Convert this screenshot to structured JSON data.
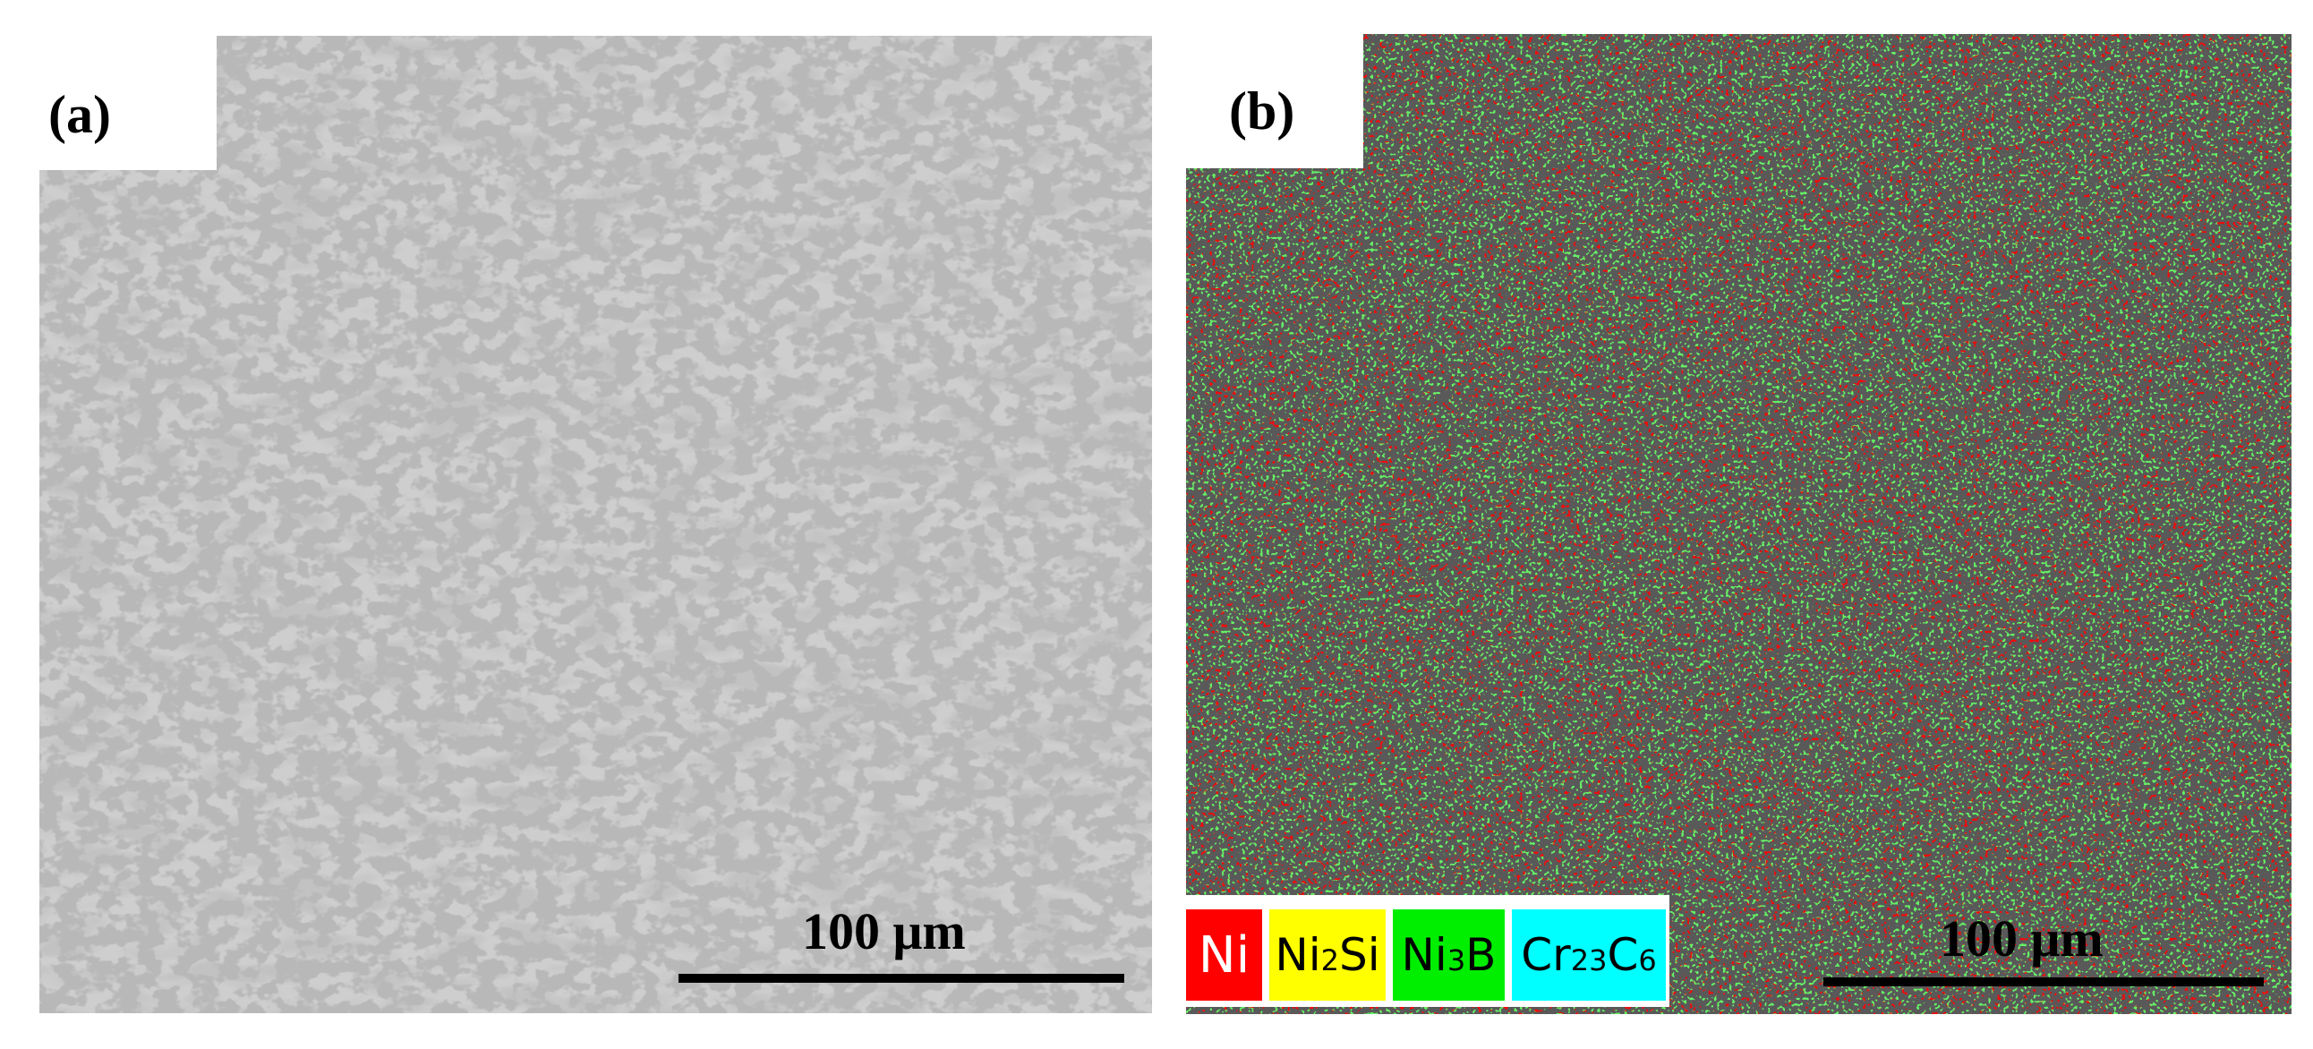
{
  "panels": {
    "a": {
      "label": "(a)",
      "scale_label": "100 μm"
    },
    "b": {
      "label": "(b)",
      "scale_label": "100 μm"
    }
  },
  "legend": [
    {
      "key": "ni",
      "base": "Ni",
      "sub1": "",
      "mid": "",
      "sub2": "",
      "color": "#ff0000",
      "text_color": "#ffffff"
    },
    {
      "key": "ni2si",
      "base": "Ni",
      "sub1": "2",
      "mid": "Si",
      "sub2": "",
      "color": "#ffff00",
      "text_color": "#000000"
    },
    {
      "key": "ni3b",
      "base": "Ni",
      "sub1": "3",
      "mid": "B",
      "sub2": "",
      "color": "#00ee00",
      "text_color": "#000000"
    },
    {
      "key": "cr23c6",
      "base": "Cr",
      "sub1": "23",
      "mid": "C",
      "sub2": "6",
      "color": "#00ffff",
      "text_color": "#000000"
    }
  ],
  "colors": {
    "micrograph_matrix": "#c4c4c4",
    "micrograph_dendrite": "#a6a6a6",
    "micrograph_interdendritic": "#7a7a7a",
    "phase_ni": "#f20a0a",
    "phase_ni3b": "#22dd22"
  }
}
